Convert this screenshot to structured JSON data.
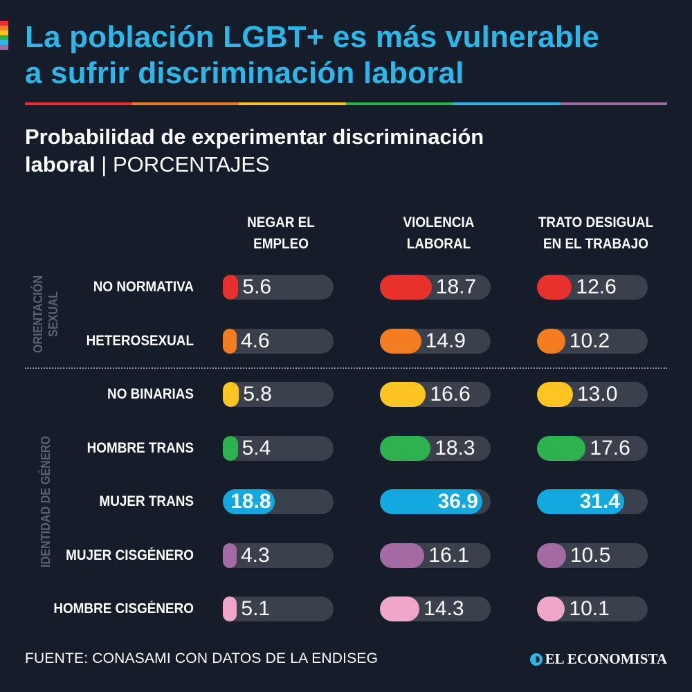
{
  "colors": {
    "background": "#161d2a",
    "title": "#2cb7ea",
    "track": "#3a404c",
    "rainbow": [
      "#e8302d",
      "#f47d22",
      "#fdc422",
      "#2eb24d",
      "#2cb7ea",
      "#a36aa4"
    ]
  },
  "title_lines": [
    "La población LGBT+ es más vulnerable",
    "a sufrir discriminación laboral"
  ],
  "subtitle": {
    "line1": "Probabilidad de experimentar discriminación",
    "line2": "laboral",
    "separator": " | ",
    "unit": "PORCENTAJES"
  },
  "chart_data": {
    "type": "bar",
    "title": "Probabilidad de experimentar discriminación laboral",
    "unit": "PORCENTAJES",
    "xlim": [
      0,
      40
    ],
    "columns": [
      {
        "lines": [
          "NEGAR EL",
          "EMPLEO"
        ],
        "name": "NEGAR EL EMPLEO"
      },
      {
        "lines": [
          "VIOLENCIA",
          "LABORAL"
        ],
        "name": "VIOLENCIA LABORAL"
      },
      {
        "lines": [
          "TRATO DESIGUAL",
          "EN EL TRABAJO"
        ],
        "name": "TRATO DESIGUAL EN EL TRABAJO"
      }
    ],
    "groups": [
      {
        "lines": [
          "ORIENTACIÓN",
          "SEXUAL"
        ],
        "rows": [
          0,
          1
        ]
      },
      {
        "lines": [
          "IDENTIDAD DE GÉNERO"
        ],
        "rows": [
          2,
          3,
          4,
          5,
          6
        ]
      }
    ],
    "rows": [
      {
        "label": "NO NORMATIVA",
        "color": "#e8302d",
        "values": [
          5.6,
          18.7,
          12.6
        ],
        "display": [
          "5.6",
          "18.7",
          "12.6"
        ],
        "highlight": false
      },
      {
        "label": "HETEROSEXUAL",
        "color": "#f47d22",
        "values": [
          4.6,
          14.9,
          10.2
        ],
        "display": [
          "4.6",
          "14.9",
          "10.2"
        ],
        "highlight": false
      },
      {
        "label": "NO BINARIAS",
        "color": "#fdc422",
        "values": [
          5.8,
          16.6,
          13.0
        ],
        "display": [
          "5.8",
          "16.6",
          "13.0"
        ],
        "highlight": false
      },
      {
        "label": "HOMBRE TRANS",
        "color": "#2eb24d",
        "values": [
          5.4,
          18.3,
          17.6
        ],
        "display": [
          "5.4",
          "18.3",
          "17.6"
        ],
        "highlight": false
      },
      {
        "label": "MUJER TRANS",
        "color": "#14a8e0",
        "values": [
          18.8,
          36.9,
          31.4
        ],
        "display": [
          "18.8",
          "36.9",
          "31.4"
        ],
        "highlight": true
      },
      {
        "label": "MUJER CISGÉNERO",
        "color": "#a36aa4",
        "values": [
          4.3,
          16.1,
          10.5
        ],
        "display": [
          "4.3",
          "16.1",
          "10.5"
        ],
        "highlight": false
      },
      {
        "label": "HOMBRE CISGÉNERO",
        "color": "#f0a6c8",
        "values": [
          5.1,
          14.3,
          10.1
        ],
        "display": [
          "5.1",
          "14.3",
          "10.1"
        ],
        "highlight": false
      }
    ]
  },
  "footer": {
    "source": "FUENTE: CONASAMI CON DATOS DE LA ENDISEG",
    "logo": "EL ECONOMISTA"
  }
}
